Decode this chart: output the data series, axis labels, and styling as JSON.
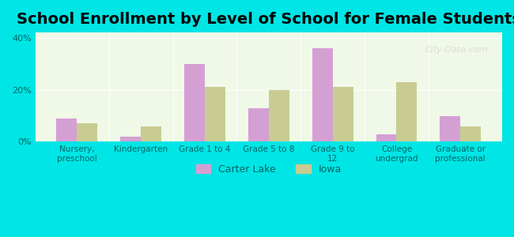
{
  "title": "School Enrollment by Level of School for Female Students",
  "categories": [
    "Nursery,\npreschool",
    "Kindergarten",
    "Grade 1 to 4",
    "Grade 5 to 8",
    "Grade 9 to\n12",
    "College\nundergrad",
    "Graduate or\nprofessional"
  ],
  "carter_lake": [
    9,
    2,
    30,
    13,
    36,
    3,
    10
  ],
  "iowa": [
    7,
    6,
    21,
    20,
    21,
    23,
    6
  ],
  "carter_lake_color": "#d4a0d4",
  "iowa_color": "#c8cc90",
  "background_outer": "#00e5e5",
  "background_inner_top": "#f0f8e8",
  "background_inner_bottom": "#ffffff",
  "title_fontsize": 14,
  "legend_labels": [
    "Carter Lake",
    "Iowa"
  ],
  "ylim": [
    0,
    42
  ],
  "yticks": [
    0,
    20,
    40
  ],
  "ytick_labels": [
    "0%",
    "20%",
    "40%"
  ]
}
